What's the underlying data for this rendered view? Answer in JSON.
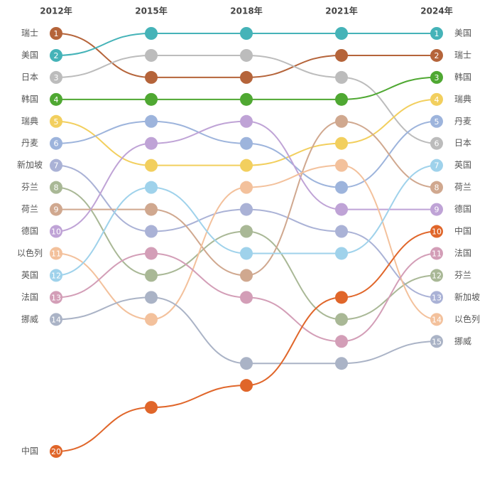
{
  "chart_data": {
    "type": "bump",
    "categories": [
      "2012年",
      "2015年",
      "2018年",
      "2021年",
      "2024年"
    ],
    "ylim": [
      1,
      20
    ],
    "series": [
      {
        "name": "瑞士",
        "color": "#b5643a",
        "values": [
          1,
          3,
          3,
          2,
          2
        ]
      },
      {
        "name": "美国",
        "color": "#45b3b8",
        "values": [
          2,
          1,
          1,
          1,
          1
        ]
      },
      {
        "name": "日本",
        "color": "#bcbcbc",
        "values": [
          3,
          2,
          2,
          3,
          6
        ]
      },
      {
        "name": "韩国",
        "color": "#4fa832",
        "values": [
          4,
          4,
          4,
          4,
          3
        ]
      },
      {
        "name": "瑞典",
        "color": "#f2cf5e",
        "values": [
          5,
          7,
          7,
          6,
          4
        ]
      },
      {
        "name": "丹麦",
        "color": "#9db4dc",
        "values": [
          6,
          5,
          6,
          8,
          5
        ]
      },
      {
        "name": "新加坡",
        "color": "#aab2d6",
        "values": [
          7,
          10,
          9,
          10,
          13
        ]
      },
      {
        "name": "芬兰",
        "color": "#a9b896",
        "values": [
          8,
          12,
          10,
          14,
          12
        ]
      },
      {
        "name": "荷兰",
        "color": "#d0a88f",
        "values": [
          9,
          9,
          12,
          5,
          8
        ]
      },
      {
        "name": "德国",
        "color": "#bfa3d6",
        "values": [
          10,
          6,
          5,
          9,
          9
        ]
      },
      {
        "name": "以色列",
        "color": "#f3c19c",
        "values": [
          11,
          14,
          8,
          7,
          14
        ]
      },
      {
        "name": "英国",
        "color": "#9fd2eb",
        "values": [
          12,
          8,
          11,
          11,
          7
        ]
      },
      {
        "name": "法国",
        "color": "#d39eb7",
        "values": [
          13,
          11,
          13,
          15,
          11
        ]
      },
      {
        "name": "挪威",
        "color": "#aab3c6",
        "values": [
          14,
          13,
          16,
          16,
          15
        ]
      },
      {
        "name": "中国",
        "color": "#e0662a",
        "values": [
          20,
          18,
          17,
          13,
          10
        ]
      }
    ]
  }
}
